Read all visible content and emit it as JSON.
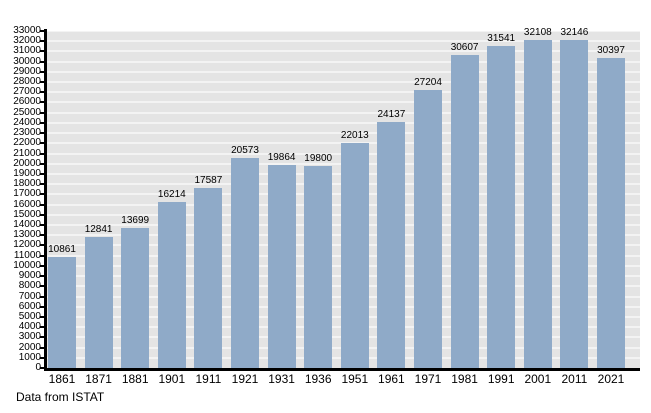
{
  "chart_data": {
    "type": "bar",
    "title": "",
    "xlabel": "",
    "ylabel": "",
    "categories": [
      "1861",
      "1871",
      "1881",
      "1901",
      "1911",
      "1921",
      "1931",
      "1936",
      "1951",
      "1961",
      "1971",
      "1981",
      "1991",
      "2001",
      "2011",
      "2021"
    ],
    "values": [
      10861,
      12841,
      13699,
      16214,
      17587,
      20573,
      19864,
      19800,
      22013,
      24137,
      27204,
      30607,
      31541,
      32108,
      32146,
      30397
    ],
    "ylim": [
      0,
      33000
    ],
    "ytick_step": 1000,
    "grid": true,
    "legend": "none",
    "bar_color": "#8faac8",
    "plot_background": "#e4e4e4",
    "gridline_color": "#f3f3f3",
    "axis_color": "#000000"
  },
  "footer": {
    "source_note": "Data from ISTAT"
  }
}
